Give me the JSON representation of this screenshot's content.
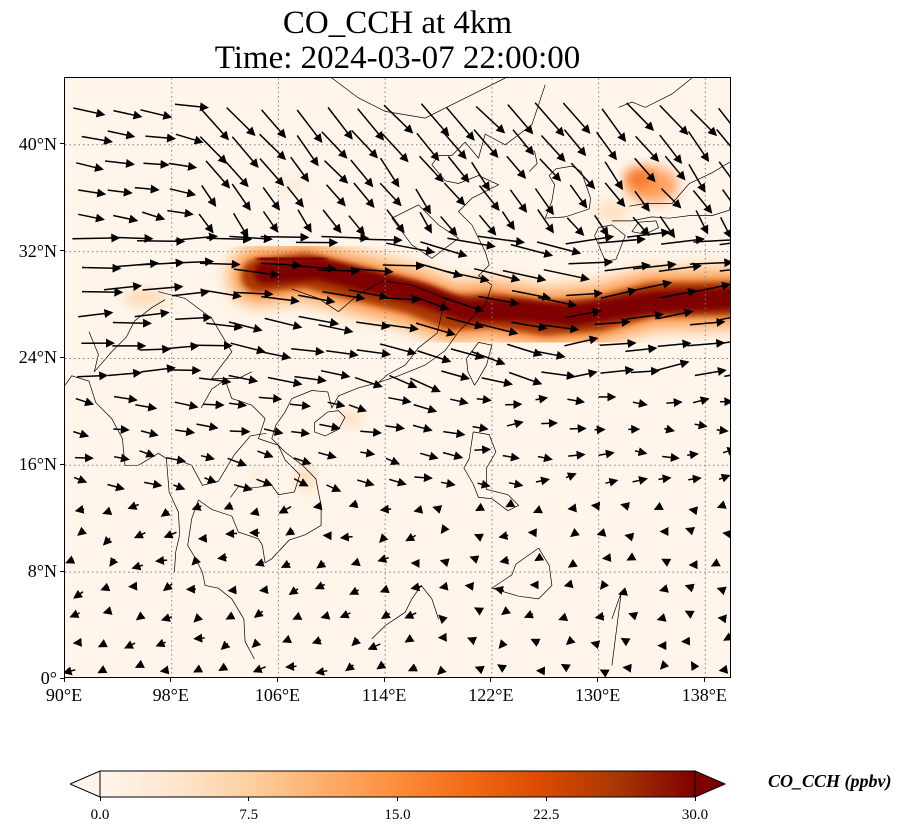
{
  "title": {
    "line1": "CO_CCH at 4km",
    "line2": "Time: 2024-03-07 22:00:00"
  },
  "map": {
    "lon_range": [
      90,
      140
    ],
    "lat_range": [
      0,
      45
    ],
    "gridline_style": "dotted gray",
    "background_color": "#fff5eb",
    "lat_ticks": [
      {
        "value": 0,
        "label": "0°"
      },
      {
        "value": 8,
        "label": "8°N"
      },
      {
        "value": 16,
        "label": "16°N"
      },
      {
        "value": 24,
        "label": "24°N"
      },
      {
        "value": 32,
        "label": "32°N"
      },
      {
        "value": 40,
        "label": "40°N"
      }
    ],
    "lon_ticks": [
      {
        "value": 90,
        "label": "90°E"
      },
      {
        "value": 98,
        "label": "98°E"
      },
      {
        "value": 106,
        "label": "106°E"
      },
      {
        "value": 114,
        "label": "114°E"
      },
      {
        "value": 122,
        "label": "122°E"
      },
      {
        "value": 130,
        "label": "130°E"
      },
      {
        "value": 138,
        "label": "138°E"
      }
    ]
  },
  "colorbar": {
    "label": "CO_CCH (ppbv)",
    "min": 0.0,
    "max": 30.0,
    "extend": "both",
    "colormap": [
      "#fff5eb",
      "#fee6ce",
      "#fdd0a2",
      "#fdae6b",
      "#fd8d3c",
      "#f16913",
      "#d94801",
      "#a63603",
      "#7f0000"
    ],
    "ticks": [
      {
        "value": 0.0,
        "label": "0.0"
      },
      {
        "value": 7.5,
        "label": "7.5"
      },
      {
        "value": 15.0,
        "label": "15.0"
      },
      {
        "value": 22.5,
        "label": "22.5"
      },
      {
        "value": 30.0,
        "label": "30.0"
      }
    ]
  }
}
